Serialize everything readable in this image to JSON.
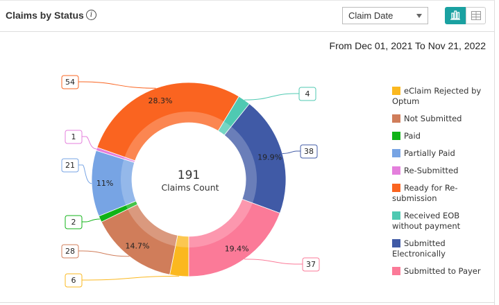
{
  "header": {
    "title": "Claims by Status",
    "info_icon": "info-icon",
    "date_select": "Claim Date",
    "view_chart_icon": "bar-chart-icon",
    "view_table_icon": "table-grid-icon",
    "accent": "#1aa1a1"
  },
  "range": {
    "from_label": "From",
    "from": "Dec 01, 2021",
    "to_label": "To",
    "to": "Nov 21, 2022"
  },
  "chart_data": {
    "type": "pie",
    "donut": true,
    "center_value": "191",
    "center_label": "Claims Count",
    "legend_position": "right",
    "series": [
      {
        "name": "eClaim Rejected by Optum",
        "value": 6,
        "color": "#fbb81f",
        "pct_label": ""
      },
      {
        "name": "Not Submitted",
        "value": 28,
        "color": "#d07d5a",
        "pct_label": "14.7%"
      },
      {
        "name": "Paid",
        "value": 2,
        "color": "#10b317",
        "pct_label": ""
      },
      {
        "name": "Partially Paid",
        "value": 21,
        "color": "#77a4e4",
        "pct_label": "11%"
      },
      {
        "name": "Re-Submitted",
        "value": 1,
        "color": "#e47fdc",
        "pct_label": ""
      },
      {
        "name": "Ready for Re-submission",
        "value": 54,
        "color": "#fa6420",
        "pct_label": "28.3%"
      },
      {
        "name": "Received EOB without payment",
        "value": 4,
        "color": "#4fc9b2",
        "pct_label": ""
      },
      {
        "name": "Submitted Electronically",
        "value": 38,
        "color": "#405aa6",
        "pct_label": "19.9%"
      },
      {
        "name": "Submitted to Payer",
        "value": 37,
        "color": "#fb7a98",
        "pct_label": "19.4%"
      }
    ]
  }
}
